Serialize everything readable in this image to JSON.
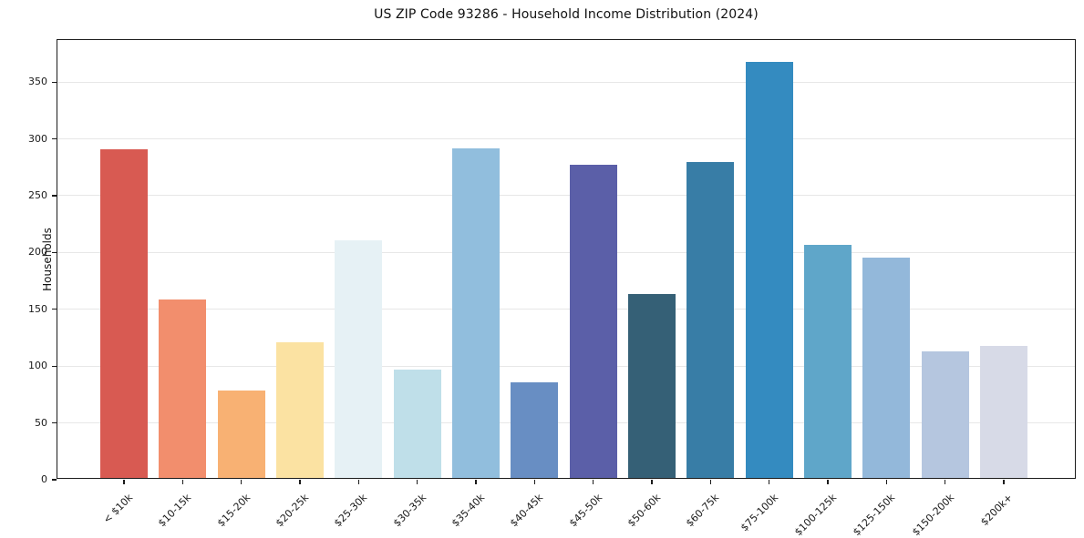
{
  "figure": {
    "title": "US ZIP Code 93286 - Household Income Distribution (2024)"
  },
  "chart_data": {
    "type": "bar",
    "title": "US ZIP Code 93286 - Household Income Distribution (2024)",
    "xlabel": "",
    "ylabel": "Households",
    "categories": [
      "< $10k",
      "$10-15k",
      "$15-20k",
      "$20-25k",
      "$25-30k",
      "$30-35k",
      "$35-40k",
      "$40-45k",
      "$45-50k",
      "$50-60k",
      "$60-75k",
      "$75-100k",
      "$100-125k",
      "$125-150k",
      "$150-200k",
      "$200k+"
    ],
    "values": [
      289,
      157,
      77,
      119,
      209,
      95,
      290,
      84,
      276,
      162,
      278,
      366,
      205,
      194,
      111,
      116
    ],
    "bar_colors": [
      "#d85a52",
      "#f28e6d",
      "#f8b173",
      "#fbe2a2",
      "#e6f1f5",
      "#bfdfe9",
      "#91bedd",
      "#688ec3",
      "#5b5fa8",
      "#356076",
      "#387da6",
      "#348bc0",
      "#5fa6c9",
      "#93b8da",
      "#b5c6df",
      "#d7dae7"
    ],
    "ylim": [
      0,
      387
    ],
    "yticks": [
      0,
      50,
      100,
      150,
      200,
      250,
      300,
      350
    ],
    "grid": "horizontal",
    "gridline_color": "#e7e7e7",
    "legend": "none",
    "axis_color": "#1c1c1c"
  }
}
